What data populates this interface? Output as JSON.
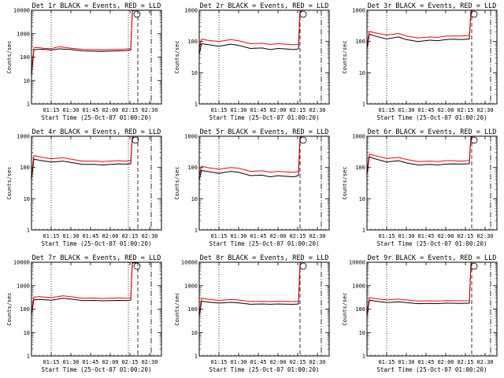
{
  "figure": {
    "colors": {
      "events": "#000000",
      "lld": "#ff0000"
    }
  },
  "chart_data": [
    {
      "type": "line",
      "title": "Det 1r BLACK = Events, RED = LLD",
      "xlabel": "Start Time (25-Oct-07 01:00:20)",
      "ylabel": "Counts/sec",
      "yscale": "log",
      "ylim": [
        1,
        10000
      ],
      "xlim": [
        1.0,
        2.65
      ],
      "xticks": [
        "01:15",
        "01:30",
        "01:45",
        "02:00",
        "02:15",
        "02:30"
      ],
      "xtick_values": [
        1.25,
        1.5,
        1.75,
        2.0,
        2.25,
        2.5
      ],
      "yticks": [
        "1",
        "10",
        "100",
        "1000",
        "10000"
      ],
      "vlines_dotted": [
        1.25,
        2.23
      ],
      "vlines_dashed": [
        2.35
      ],
      "vlines_dashdot": [
        2.52
      ],
      "series": [
        {
          "name": "Events",
          "x": [
            1.0,
            1.03,
            1.06,
            1.15,
            1.25,
            1.35,
            1.5,
            1.65,
            1.75,
            1.9,
            2.0,
            2.1,
            2.2,
            2.26,
            2.28,
            2.3,
            2.35
          ],
          "y": [
            15,
            200,
            210,
            215,
            200,
            225,
            210,
            185,
            180,
            175,
            180,
            185,
            190,
            200,
            9000,
            9800,
            9800
          ]
        },
        {
          "name": "LLD",
          "x": [
            1.0,
            1.03,
            1.06,
            1.15,
            1.25,
            1.35,
            1.5,
            1.65,
            1.75,
            1.9,
            2.0,
            2.1,
            2.2,
            2.26,
            2.28,
            2.3,
            2.35
          ],
          "y": [
            20,
            250,
            260,
            240,
            230,
            280,
            240,
            215,
            210,
            205,
            210,
            215,
            220,
            230,
            10000,
            10000,
            10000
          ]
        }
      ]
    },
    {
      "type": "line",
      "title": "Det 2r BLACK = Events, RED = LLD",
      "xlabel": "Start Time (25-Oct-07 01:00:20)",
      "ylabel": "Counts/sec",
      "yscale": "log",
      "ylim": [
        1,
        1000
      ],
      "xlim": [
        1.0,
        2.65
      ],
      "xticks": [
        "01:15",
        "01:30",
        "01:45",
        "02:00",
        "02:15",
        "02:30"
      ],
      "xtick_values": [
        1.25,
        1.5,
        1.75,
        2.0,
        2.25,
        2.5
      ],
      "yticks": [
        "1",
        "10",
        "100",
        "1000"
      ],
      "vlines_dotted": [
        1.25
      ],
      "vlines_dashed": [
        2.28
      ],
      "vlines_dashdot": [
        2.55
      ],
      "series": [
        {
          "name": "Events",
          "x": [
            1.0,
            1.03,
            1.1,
            1.25,
            1.4,
            1.5,
            1.65,
            1.8,
            1.9,
            2.0,
            2.1,
            2.2,
            2.26,
            2.28,
            2.3
          ],
          "y": [
            40,
            85,
            80,
            70,
            82,
            75,
            60,
            62,
            55,
            60,
            58,
            55,
            58,
            900,
            950
          ]
        },
        {
          "name": "LLD",
          "x": [
            1.0,
            1.03,
            1.1,
            1.25,
            1.4,
            1.5,
            1.65,
            1.8,
            1.9,
            2.0,
            2.1,
            2.2,
            2.26,
            2.28,
            2.3
          ],
          "y": [
            60,
            120,
            110,
            100,
            115,
            105,
            85,
            88,
            80,
            85,
            82,
            78,
            82,
            1000,
            1000
          ]
        }
      ]
    },
    {
      "type": "line",
      "title": "Det 3r BLACK = Events, RED = LLD",
      "xlabel": "Start Time (25-Oct-07 01:00:20)",
      "ylabel": "Counts/sec",
      "yscale": "log",
      "ylim": [
        1,
        1000
      ],
      "xlim": [
        1.0,
        2.65
      ],
      "xticks": [
        "01:15",
        "01:30",
        "01:45",
        "02:00",
        "02:15",
        "02:30"
      ],
      "xtick_values": [
        1.25,
        1.5,
        1.75,
        2.0,
        2.25,
        2.5
      ],
      "yticks": [
        "1",
        "10",
        "100",
        "1000"
      ],
      "vlines_dotted": [
        1.25
      ],
      "vlines_dashed": [
        2.33
      ],
      "vlines_dashdot": [
        2.57
      ],
      "series": [
        {
          "name": "Events",
          "x": [
            1.0,
            1.03,
            1.1,
            1.25,
            1.4,
            1.5,
            1.65,
            1.8,
            1.9,
            2.0,
            2.1,
            2.2,
            2.3,
            2.32,
            2.34
          ],
          "y": [
            60,
            170,
            150,
            120,
            140,
            115,
            100,
            110,
            105,
            115,
            118,
            115,
            120,
            900,
            950
          ]
        },
        {
          "name": "LLD",
          "x": [
            1.0,
            1.03,
            1.1,
            1.25,
            1.4,
            1.5,
            1.65,
            1.8,
            1.9,
            2.0,
            2.1,
            2.2,
            2.3,
            2.32,
            2.34
          ],
          "y": [
            80,
            210,
            190,
            160,
            180,
            150,
            130,
            140,
            135,
            150,
            150,
            150,
            155,
            1000,
            1000
          ]
        }
      ]
    },
    {
      "type": "line",
      "title": "Det 4r BLACK = Events, RED = LLD",
      "xlabel": "Start Time (25-Oct-07 01:00:20)",
      "ylabel": "Counts/sec",
      "yscale": "log",
      "ylim": [
        1,
        1000
      ],
      "xlim": [
        1.0,
        2.65
      ],
      "xticks": [
        "01:15",
        "01:30",
        "01:45",
        "02:00",
        "02:15",
        "02:30"
      ],
      "xtick_values": [
        1.25,
        1.5,
        1.75,
        2.0,
        2.25,
        2.5
      ],
      "yticks": [
        "1",
        "10",
        "100",
        "1000"
      ],
      "vlines_dotted": [
        1.25,
        2.23
      ],
      "vlines_dashed": [
        2.35
      ],
      "vlines_dashdot": [
        2.52
      ],
      "series": [
        {
          "name": "Events",
          "x": [
            1.0,
            1.03,
            1.1,
            1.25,
            1.4,
            1.5,
            1.65,
            1.8,
            1.9,
            2.0,
            2.1,
            2.2,
            2.26,
            2.28,
            2.3
          ],
          "y": [
            40,
            185,
            170,
            150,
            160,
            145,
            125,
            125,
            120,
            125,
            130,
            128,
            132,
            900,
            950
          ]
        },
        {
          "name": "LLD",
          "x": [
            1.0,
            1.03,
            1.1,
            1.25,
            1.4,
            1.5,
            1.65,
            1.8,
            1.9,
            2.0,
            2.1,
            2.2,
            2.26,
            2.28,
            2.3
          ],
          "y": [
            60,
            240,
            220,
            190,
            205,
            185,
            160,
            160,
            155,
            160,
            165,
            160,
            168,
            1000,
            1000
          ]
        }
      ]
    },
    {
      "type": "line",
      "title": "Det 5r BLACK = Events, RED = LLD",
      "xlabel": "Start Time (25-Oct-07 01:00:20)",
      "ylabel": "Counts/sec",
      "yscale": "log",
      "ylim": [
        1,
        1000
      ],
      "xlim": [
        1.0,
        2.65
      ],
      "xticks": [
        "01:15",
        "01:30",
        "01:45",
        "02:00",
        "02:15",
        "02:30"
      ],
      "xtick_values": [
        1.25,
        1.5,
        1.75,
        2.0,
        2.25,
        2.5
      ],
      "yticks": [
        "1",
        "10",
        "100",
        "1000"
      ],
      "vlines_dotted": [
        1.25
      ],
      "vlines_dashed": [
        2.28
      ],
      "vlines_dashdot": [
        2.55
      ],
      "series": [
        {
          "name": "Events",
          "x": [
            1.0,
            1.03,
            1.1,
            1.25,
            1.4,
            1.5,
            1.65,
            1.8,
            1.9,
            2.0,
            2.1,
            2.2,
            2.26,
            2.28,
            2.3
          ],
          "y": [
            40,
            80,
            75,
            65,
            75,
            70,
            55,
            57,
            50,
            55,
            52,
            50,
            55,
            900,
            950
          ]
        },
        {
          "name": "LLD",
          "x": [
            1.0,
            1.03,
            1.1,
            1.25,
            1.4,
            1.5,
            1.65,
            1.8,
            1.9,
            2.0,
            2.1,
            2.2,
            2.26,
            2.28,
            2.3
          ],
          "y": [
            55,
            110,
            100,
            88,
            100,
            95,
            75,
            78,
            70,
            75,
            72,
            70,
            75,
            1000,
            1000
          ]
        }
      ]
    },
    {
      "type": "line",
      "title": "Det 6r BLACK = Events, RED = LLD",
      "xlabel": "Start Time (25-Oct-07 01:00:20)",
      "ylabel": "Counts/sec",
      "yscale": "log",
      "ylim": [
        1,
        1000
      ],
      "xlim": [
        1.0,
        2.65
      ],
      "xticks": [
        "01:15",
        "01:30",
        "01:45",
        "02:00",
        "02:15",
        "02:30"
      ],
      "xtick_values": [
        1.25,
        1.5,
        1.75,
        2.0,
        2.25,
        2.5
      ],
      "yticks": [
        "1",
        "10",
        "100",
        "1000"
      ],
      "vlines_dotted": [
        1.25
      ],
      "vlines_dashed": [
        2.33
      ],
      "vlines_dashdot": [
        2.57
      ],
      "series": [
        {
          "name": "Events",
          "x": [
            1.0,
            1.03,
            1.1,
            1.25,
            1.4,
            1.5,
            1.65,
            1.8,
            1.9,
            2.0,
            2.1,
            2.2,
            2.3,
            2.32,
            2.34
          ],
          "y": [
            60,
            220,
            190,
            150,
            165,
            140,
            120,
            125,
            120,
            128,
            130,
            128,
            132,
            900,
            950
          ]
        },
        {
          "name": "LLD",
          "x": [
            1.0,
            1.03,
            1.1,
            1.25,
            1.4,
            1.5,
            1.65,
            1.8,
            1.9,
            2.0,
            2.1,
            2.2,
            2.3,
            2.32,
            2.34
          ],
          "y": [
            80,
            270,
            240,
            195,
            210,
            180,
            155,
            160,
            155,
            165,
            165,
            160,
            168,
            1000,
            1000
          ]
        }
      ]
    },
    {
      "type": "line",
      "title": "Det 7r BLACK = Events, RED = LLD",
      "xlabel": "Start Time (25-Oct-07 01:00:20)",
      "ylabel": "Counts/sec",
      "yscale": "log",
      "ylim": [
        1,
        10000
      ],
      "xlim": [
        1.0,
        2.65
      ],
      "xticks": [
        "01:15",
        "01:30",
        "01:45",
        "02:00",
        "02:15",
        "02:30"
      ],
      "xtick_values": [
        1.25,
        1.5,
        1.75,
        2.0,
        2.25,
        2.5
      ],
      "yticks": [
        "1",
        "10",
        "100",
        "1000",
        "10000"
      ],
      "vlines_dotted": [
        1.25,
        2.23
      ],
      "vlines_dashed": [
        2.35
      ],
      "vlines_dashdot": [
        2.52
      ],
      "series": [
        {
          "name": "Events",
          "x": [
            1.0,
            1.03,
            1.1,
            1.25,
            1.4,
            1.5,
            1.65,
            1.8,
            1.9,
            2.0,
            2.1,
            2.2,
            2.26,
            2.28,
            2.3,
            2.35
          ],
          "y": [
            60,
            250,
            260,
            240,
            290,
            270,
            230,
            235,
            225,
            230,
            235,
            230,
            240,
            9000,
            9500,
            9500
          ]
        },
        {
          "name": "LLD",
          "x": [
            1.0,
            1.03,
            1.1,
            1.25,
            1.4,
            1.5,
            1.65,
            1.8,
            1.9,
            2.0,
            2.1,
            2.2,
            2.26,
            2.28,
            2.3,
            2.35
          ],
          "y": [
            80,
            330,
            340,
            310,
            370,
            340,
            290,
            295,
            285,
            290,
            300,
            290,
            305,
            10000,
            10000,
            10000
          ]
        }
      ]
    },
    {
      "type": "line",
      "title": "Det 8r BLACK = Events, RED = LLD",
      "xlabel": "Start Time (25-Oct-07 01:00:20)",
      "ylabel": "Counts/sec",
      "yscale": "log",
      "ylim": [
        1,
        10000
      ],
      "xlim": [
        1.0,
        2.65
      ],
      "xticks": [
        "01:15",
        "01:30",
        "01:45",
        "02:00",
        "02:15",
        "02:30"
      ],
      "xtick_values": [
        1.25,
        1.5,
        1.75,
        2.0,
        2.25,
        2.5
      ],
      "yticks": [
        "1",
        "10",
        "100",
        "1000",
        "10000"
      ],
      "vlines_dotted": [
        1.25
      ],
      "vlines_dashed": [
        2.28
      ],
      "vlines_dashdot": [
        2.55
      ],
      "series": [
        {
          "name": "Events",
          "x": [
            1.0,
            1.03,
            1.1,
            1.25,
            1.4,
            1.5,
            1.65,
            1.8,
            1.9,
            2.0,
            2.1,
            2.2,
            2.26,
            2.28,
            2.3
          ],
          "y": [
            50,
            220,
            200,
            180,
            195,
            185,
            160,
            165,
            160,
            165,
            162,
            160,
            165,
            8000,
            9000
          ]
        },
        {
          "name": "LLD",
          "x": [
            1.0,
            1.03,
            1.1,
            1.25,
            1.4,
            1.5,
            1.65,
            1.8,
            1.9,
            2.0,
            2.1,
            2.2,
            2.26,
            2.28,
            2.3
          ],
          "y": [
            70,
            290,
            265,
            235,
            255,
            245,
            210,
            215,
            210,
            215,
            212,
            210,
            215,
            9500,
            10000
          ]
        }
      ]
    },
    {
      "type": "line",
      "title": "Det 9r BLACK = Events, RED = LLD",
      "xlabel": "Start Time (25-Oct-07 01:00:20)",
      "ylabel": "Counts/sec",
      "yscale": "log",
      "ylim": [
        1,
        10000
      ],
      "xlim": [
        1.0,
        2.65
      ],
      "xticks": [
        "01:15",
        "01:30",
        "01:45",
        "02:00",
        "02:15",
        "02:30"
      ],
      "xtick_values": [
        1.25,
        1.5,
        1.75,
        2.0,
        2.25,
        2.5
      ],
      "yticks": [
        "1",
        "10",
        "100",
        "1000",
        "10000"
      ],
      "vlines_dotted": [
        1.25
      ],
      "vlines_dashed": [
        2.33
      ],
      "vlines_dashdot": [
        2.57
      ],
      "series": [
        {
          "name": "Events",
          "x": [
            1.0,
            1.03,
            1.1,
            1.25,
            1.4,
            1.5,
            1.65,
            1.8,
            1.9,
            2.0,
            2.1,
            2.2,
            2.3,
            2.32,
            2.34
          ],
          "y": [
            50,
            240,
            220,
            190,
            205,
            190,
            170,
            175,
            170,
            180,
            178,
            175,
            180,
            8000,
            9000
          ]
        },
        {
          "name": "LLD",
          "x": [
            1.0,
            1.03,
            1.1,
            1.25,
            1.4,
            1.5,
            1.65,
            1.8,
            1.9,
            2.0,
            2.1,
            2.2,
            2.3,
            2.32,
            2.34
          ],
          "y": [
            70,
            310,
            285,
            245,
            265,
            245,
            220,
            225,
            220,
            230,
            228,
            225,
            230,
            9500,
            10000
          ]
        }
      ]
    }
  ]
}
